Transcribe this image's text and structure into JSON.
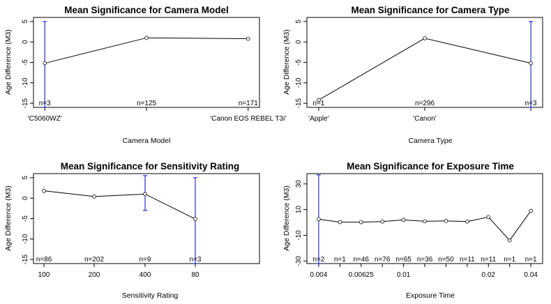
{
  "chart_data": [
    {
      "type": "line",
      "title": "Mean Significance for Camera Model",
      "xlabel": "Camera Model",
      "ylabel": "Age Difference (M3)",
      "ylim": [
        -16,
        6
      ],
      "yticks": [
        -15,
        -10,
        -5,
        0,
        5
      ],
      "categories": [
        "'C5060WZ'",
        "",
        "'Canon EOS REBEL T3i'"
      ],
      "x_tick_labels": [
        "'C5060WZ'",
        "'Canon EOS REBEL T3i'"
      ],
      "values": [
        -5.2,
        1.0,
        0.8
      ],
      "n_labels": [
        "n=3",
        "n=125",
        "n=171"
      ],
      "error_bars": [
        [
          -16,
          5
        ],
        [
          0.3,
          1.7
        ],
        [
          0.4,
          1.2
        ]
      ],
      "error_bar_color": "#0000cc"
    },
    {
      "type": "line",
      "title": "Mean Significance for Camera Type",
      "xlabel": "Camera Type",
      "ylabel": "Age Difference (M3)",
      "ylim": [
        -16,
        6
      ],
      "yticks": [
        -15,
        -10,
        -5,
        0,
        5
      ],
      "categories": [
        "'Apple'",
        "'Canon'",
        ""
      ],
      "x_tick_labels": [
        "'Apple'",
        "'Canon'"
      ],
      "values": [
        -14.2,
        0.9,
        -5.2
      ],
      "n_labels": [
        "n=1",
        "n=296",
        "n=3"
      ],
      "error_bars": [
        null,
        [
          0.5,
          1.3
        ],
        [
          -16,
          5
        ]
      ],
      "error_bar_color": "#0000cc"
    },
    {
      "type": "line",
      "title": "Mean Significance for Sensitivity Rating",
      "xlabel": "Sensitivity Rating",
      "ylabel": "Age Difference (M3)",
      "ylim": [
        -16,
        6
      ],
      "yticks": [
        -15,
        -10,
        -5,
        0,
        5
      ],
      "categories": [
        "100",
        "200",
        "400",
        "80"
      ],
      "x_tick_labels": [
        "100",
        "200",
        "400",
        "80"
      ],
      "values": [
        1.8,
        0.4,
        1.0,
        -5.1
      ],
      "n_labels": [
        "n=86",
        "n=202",
        "n=9",
        "n=3"
      ],
      "error_bars": [
        [
          0.8,
          2.8
        ],
        [
          -0.1,
          0.9
        ],
        [
          -3,
          5.5
        ],
        [
          -16,
          5
        ]
      ],
      "error_bar_color": "#0000cc"
    },
    {
      "type": "line",
      "title": "Mean Significance for Exposure Time",
      "xlabel": "Exposure Time",
      "ylabel": "Age Difference (M3)",
      "ylim": [
        -32,
        38
      ],
      "yticks": [
        -30,
        -10,
        10,
        30
      ],
      "categories": [
        "0.004",
        "",
        "0.00625",
        "",
        "0.01",
        "",
        "",
        "",
        "0.02",
        "",
        "0.04"
      ],
      "x_tick_labels": [
        "0.004",
        "0.00625",
        "0.01",
        "0.02",
        "0.04"
      ],
      "values": [
        2.5,
        0.2,
        0.2,
        0.7,
        2.0,
        0.9,
        1.2,
        0.7,
        4.2,
        -14.0,
        9.0
      ],
      "n_labels": [
        "n=2",
        "n=1",
        "n=46",
        "n=76",
        "n=65",
        "n=36",
        "n=50",
        "n=11",
        "n=11",
        "n=1",
        "n=1"
      ],
      "error_bars": [
        [
          -32,
          37
        ],
        null,
        null,
        null,
        null,
        null,
        null,
        null,
        null,
        null,
        null
      ],
      "error_bar_color": "#0000cc"
    }
  ]
}
